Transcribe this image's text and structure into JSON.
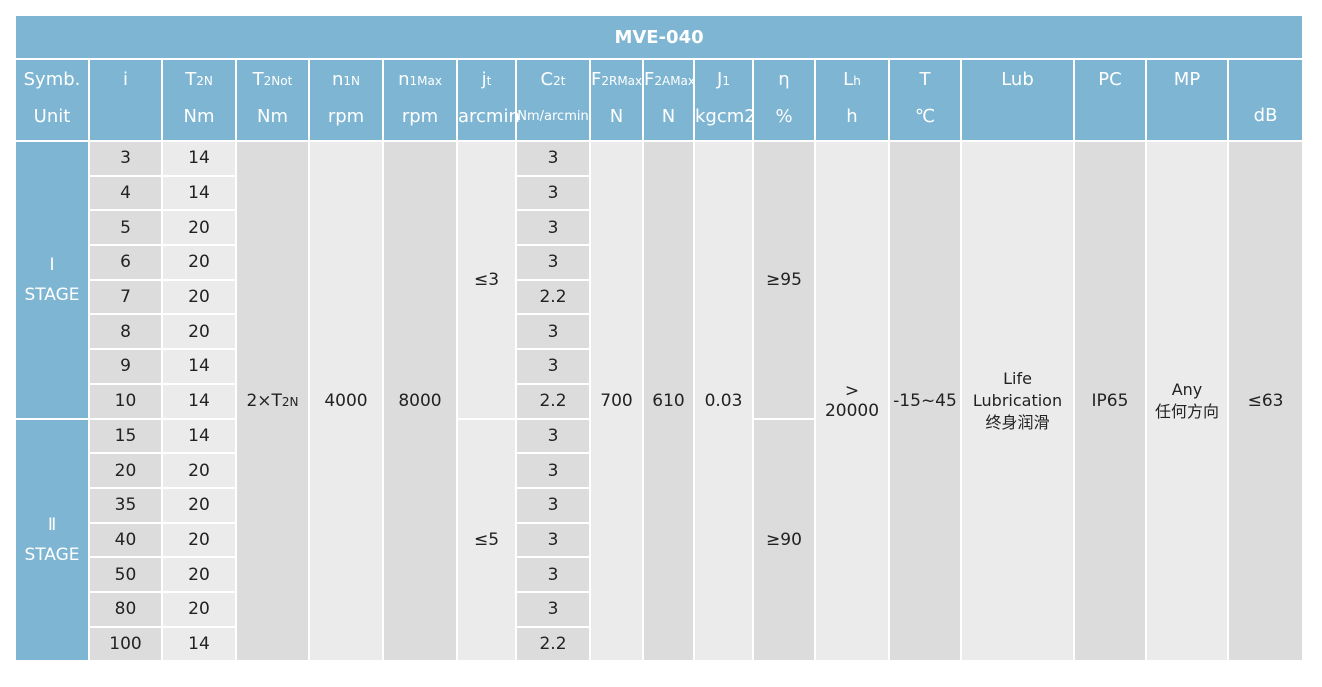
{
  "title": "MVE-040",
  "headers": [
    {
      "sym": "Symb.",
      "sub": "",
      "unit": "Unit"
    },
    {
      "sym": "i",
      "sub": "",
      "unit": ""
    },
    {
      "sym": "T",
      "sub": "2N",
      "unit": "Nm"
    },
    {
      "sym": "T",
      "sub": "2Not",
      "unit": "Nm"
    },
    {
      "sym": "n",
      "sub": "1N",
      "unit": "rpm"
    },
    {
      "sym": "n",
      "sub": "1Max",
      "unit": "rpm"
    },
    {
      "sym": "j",
      "sub": "t",
      "unit": "arcmin"
    },
    {
      "sym": "C",
      "sub": "2t",
      "unit": "Nm/arcmin"
    },
    {
      "sym": "F",
      "sub": "2RMax",
      "unit": "N"
    },
    {
      "sym": "F",
      "sub": "2AMax",
      "unit": "N"
    },
    {
      "sym": "J",
      "sub": "1",
      "unit": "kgcm2"
    },
    {
      "sym": "η",
      "sub": "",
      "unit": "%"
    },
    {
      "sym": "L",
      "sub": "h",
      "unit": "h"
    },
    {
      "sym": "T",
      "sub": "",
      "unit": "℃"
    },
    {
      "sym": "Lub",
      "sub": "",
      "unit": ""
    },
    {
      "sym": "PC",
      "sub": "",
      "unit": ""
    },
    {
      "sym": "MP",
      "sub": "",
      "unit": ""
    },
    {
      "sym": "",
      "sub": "",
      "unit": "dB"
    }
  ],
  "stages": [
    {
      "label": "Ⅰ",
      "name": "STAGE",
      "backlash": "≤3",
      "efficiency": "≥95",
      "rows": [
        {
          "i": "3",
          "t2n": "14",
          "c2t": "3"
        },
        {
          "i": "4",
          "t2n": "14",
          "c2t": "3"
        },
        {
          "i": "5",
          "t2n": "20",
          "c2t": "3"
        },
        {
          "i": "6",
          "t2n": "20",
          "c2t": "3"
        },
        {
          "i": "7",
          "t2n": "20",
          "c2t": "2.2"
        },
        {
          "i": "8",
          "t2n": "20",
          "c2t": "3"
        },
        {
          "i": "9",
          "t2n": "14",
          "c2t": "3"
        },
        {
          "i": "10",
          "t2n": "14",
          "c2t": "2.2"
        }
      ]
    },
    {
      "label": "Ⅱ",
      "name": "STAGE",
      "backlash": "≤5",
      "efficiency": "≥90",
      "rows": [
        {
          "i": "15",
          "t2n": "14",
          "c2t": "3"
        },
        {
          "i": "20",
          "t2n": "20",
          "c2t": "3"
        },
        {
          "i": "35",
          "t2n": "20",
          "c2t": "3"
        },
        {
          "i": "40",
          "t2n": "20",
          "c2t": "3"
        },
        {
          "i": "50",
          "t2n": "20",
          "c2t": "3"
        },
        {
          "i": "80",
          "t2n": "20",
          "c2t": "3"
        },
        {
          "i": "100",
          "t2n": "14",
          "c2t": "2.2"
        }
      ]
    }
  ],
  "common": {
    "t2not": "2×T",
    "t2not_sub": "2N",
    "n1n": "4000",
    "n1max": "8000",
    "f2r": "700",
    "f2a": "610",
    "j1": "0.03",
    "lh": "> 20000",
    "temp": "-15~45",
    "lub": [
      "Life",
      "Lubrication",
      "终身润滑"
    ],
    "pc": "IP65",
    "mp": [
      "Any",
      "任何方向"
    ],
    "db": "≤63"
  },
  "colors": {
    "header": "#7db5d2",
    "cell_dark": "#dcdcdc",
    "cell_light": "#ebebeb"
  }
}
